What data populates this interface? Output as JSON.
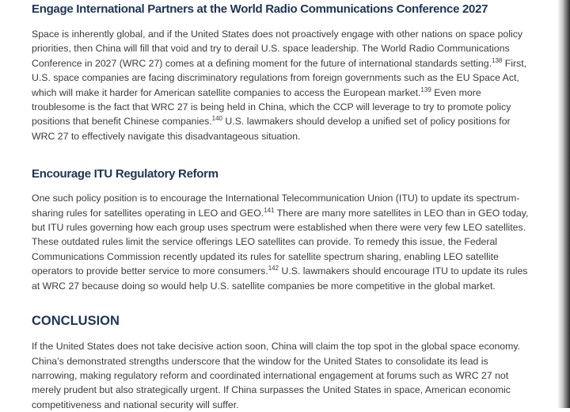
{
  "sections": [
    {
      "heading": "Engage International Partners at the World Radio Communications Conference 2027",
      "paragraphs": [
        [
          {
            "text": "Space is inherently global, and if the United States does not proactively engage with other nations on space policy priorities, then China will fill that void and try to derail U.S. space leadership. The World Radio Communications Conference in 2027 (WRC 27) comes at a defining moment for the future of international standards setting."
          },
          {
            "note": "138"
          },
          {
            "text": " First, U.S. space companies are facing discriminatory regulations from foreign governments such as the EU Space Act, which will make it harder for American satellite companies to access the European market."
          },
          {
            "note": "139"
          },
          {
            "text": " Even more troublesome is the fact that WRC 27 is being held in China, which the CCP will leverage to try to promote policy positions that benefit Chinese companies."
          },
          {
            "note": "140"
          },
          {
            "text": " U.S. lawmakers should develop a unified set of policy positions for WRC 27 to effectively navigate this disadvantageous situation."
          }
        ]
      ]
    },
    {
      "heading": "Encourage ITU Regulatory Reform",
      "paragraphs": [
        [
          {
            "text": "One such policy position is to encourage the International Telecommunication Union (ITU) to update its spectrum-sharing rules for satellites operating in LEO and GEO."
          },
          {
            "note": "141"
          },
          {
            "text": " There are many more satellites in LEO than in GEO today, but ITU rules governing how each group uses spectrum were established when there were very few LEO satellites. These outdated rules limit the service offerings LEO satellites can provide. To remedy this issue, the Federal Communications Commission recently updated its rules for satellite spectrum sharing, enabling LEO satellite operators to provide better service to more consumers."
          },
          {
            "note": "142"
          },
          {
            "text": " U.S. lawmakers should encourage ITU to update its rules at WRC 27 because doing so would help U.S. satellite companies be more competitive in the global market."
          }
        ]
      ]
    },
    {
      "heading": "CONCLUSION",
      "paragraphs": [
        [
          {
            "text": "If the United States does not take decisive action soon, China will claim the top spot in the global space economy. China’s demonstrated strengths underscore that the window for the United States to consolidate its lead is narrowing, making regulatory reform and coordinated international engagement at forums such as WRC 27 not merely prudent but also strategically urgent. If China surpasses the United States in space, American economic competitiveness and national security will suffer."
          }
        ]
      ]
    }
  ]
}
